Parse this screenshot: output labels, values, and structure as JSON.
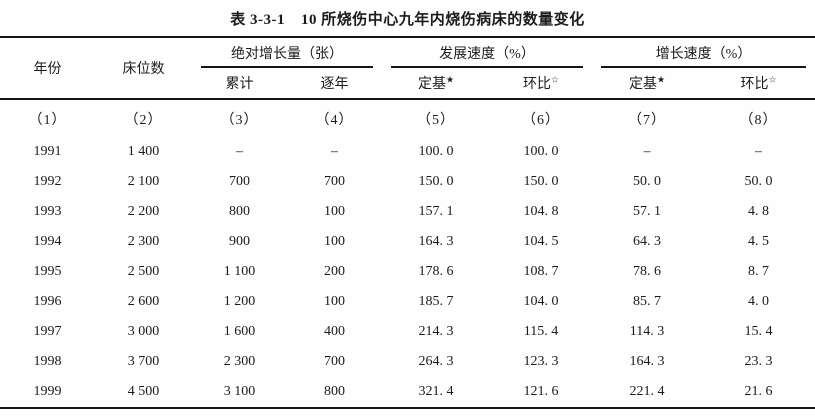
{
  "title": {
    "label": "表 3-3-1",
    "text": "10 所烧伤中心九年内烧伤病床的数量变化"
  },
  "table": {
    "headers": {
      "year": "年份",
      "beds": "床位数",
      "groups": [
        {
          "label": "绝对增长量（张）",
          "subs": [
            {
              "text": "累计",
              "mark": ""
            },
            {
              "text": "逐年",
              "mark": ""
            }
          ]
        },
        {
          "label": "发展速度（%）",
          "subs": [
            {
              "text": "定基",
              "mark": "★"
            },
            {
              "text": "环比",
              "mark": "☆"
            }
          ]
        },
        {
          "label": "增长速度（%）",
          "subs": [
            {
              "text": "定基",
              "mark": "★"
            },
            {
              "text": "环比",
              "mark": "☆"
            }
          ]
        }
      ]
    },
    "column_numbers": [
      "（1）",
      "（2）",
      "（3）",
      "（4）",
      "（5）",
      "（6）",
      "（7）",
      "（8）"
    ],
    "rows": [
      [
        "1991",
        "1 400",
        "–",
        "–",
        "100. 0",
        "100. 0",
        "–",
        "–"
      ],
      [
        "1992",
        "2 100",
        "700",
        "700",
        "150. 0",
        "150. 0",
        "50. 0",
        "50. 0"
      ],
      [
        "1993",
        "2 200",
        "800",
        "100",
        "157. 1",
        "104. 8",
        "57. 1",
        "4. 8"
      ],
      [
        "1994",
        "2 300",
        "900",
        "100",
        "164. 3",
        "104. 5",
        "64. 3",
        "4. 5"
      ],
      [
        "1995",
        "2 500",
        "1 100",
        "200",
        "178. 6",
        "108. 7",
        "78. 6",
        "8. 7"
      ],
      [
        "1996",
        "2 600",
        "1 200",
        "100",
        "185. 7",
        "104. 0",
        "85. 7",
        "4. 0"
      ],
      [
        "1997",
        "3 000",
        "1 600",
        "400",
        "214. 3",
        "115. 4",
        "114. 3",
        "15. 4"
      ],
      [
        "1998",
        "3 700",
        "2 300",
        "700",
        "264. 3",
        "123. 3",
        "164. 3",
        "23. 3"
      ],
      [
        "1999",
        "4 500",
        "3 100",
        "800",
        "321. 4",
        "121. 6",
        "221. 4",
        "21. 6"
      ]
    ]
  }
}
